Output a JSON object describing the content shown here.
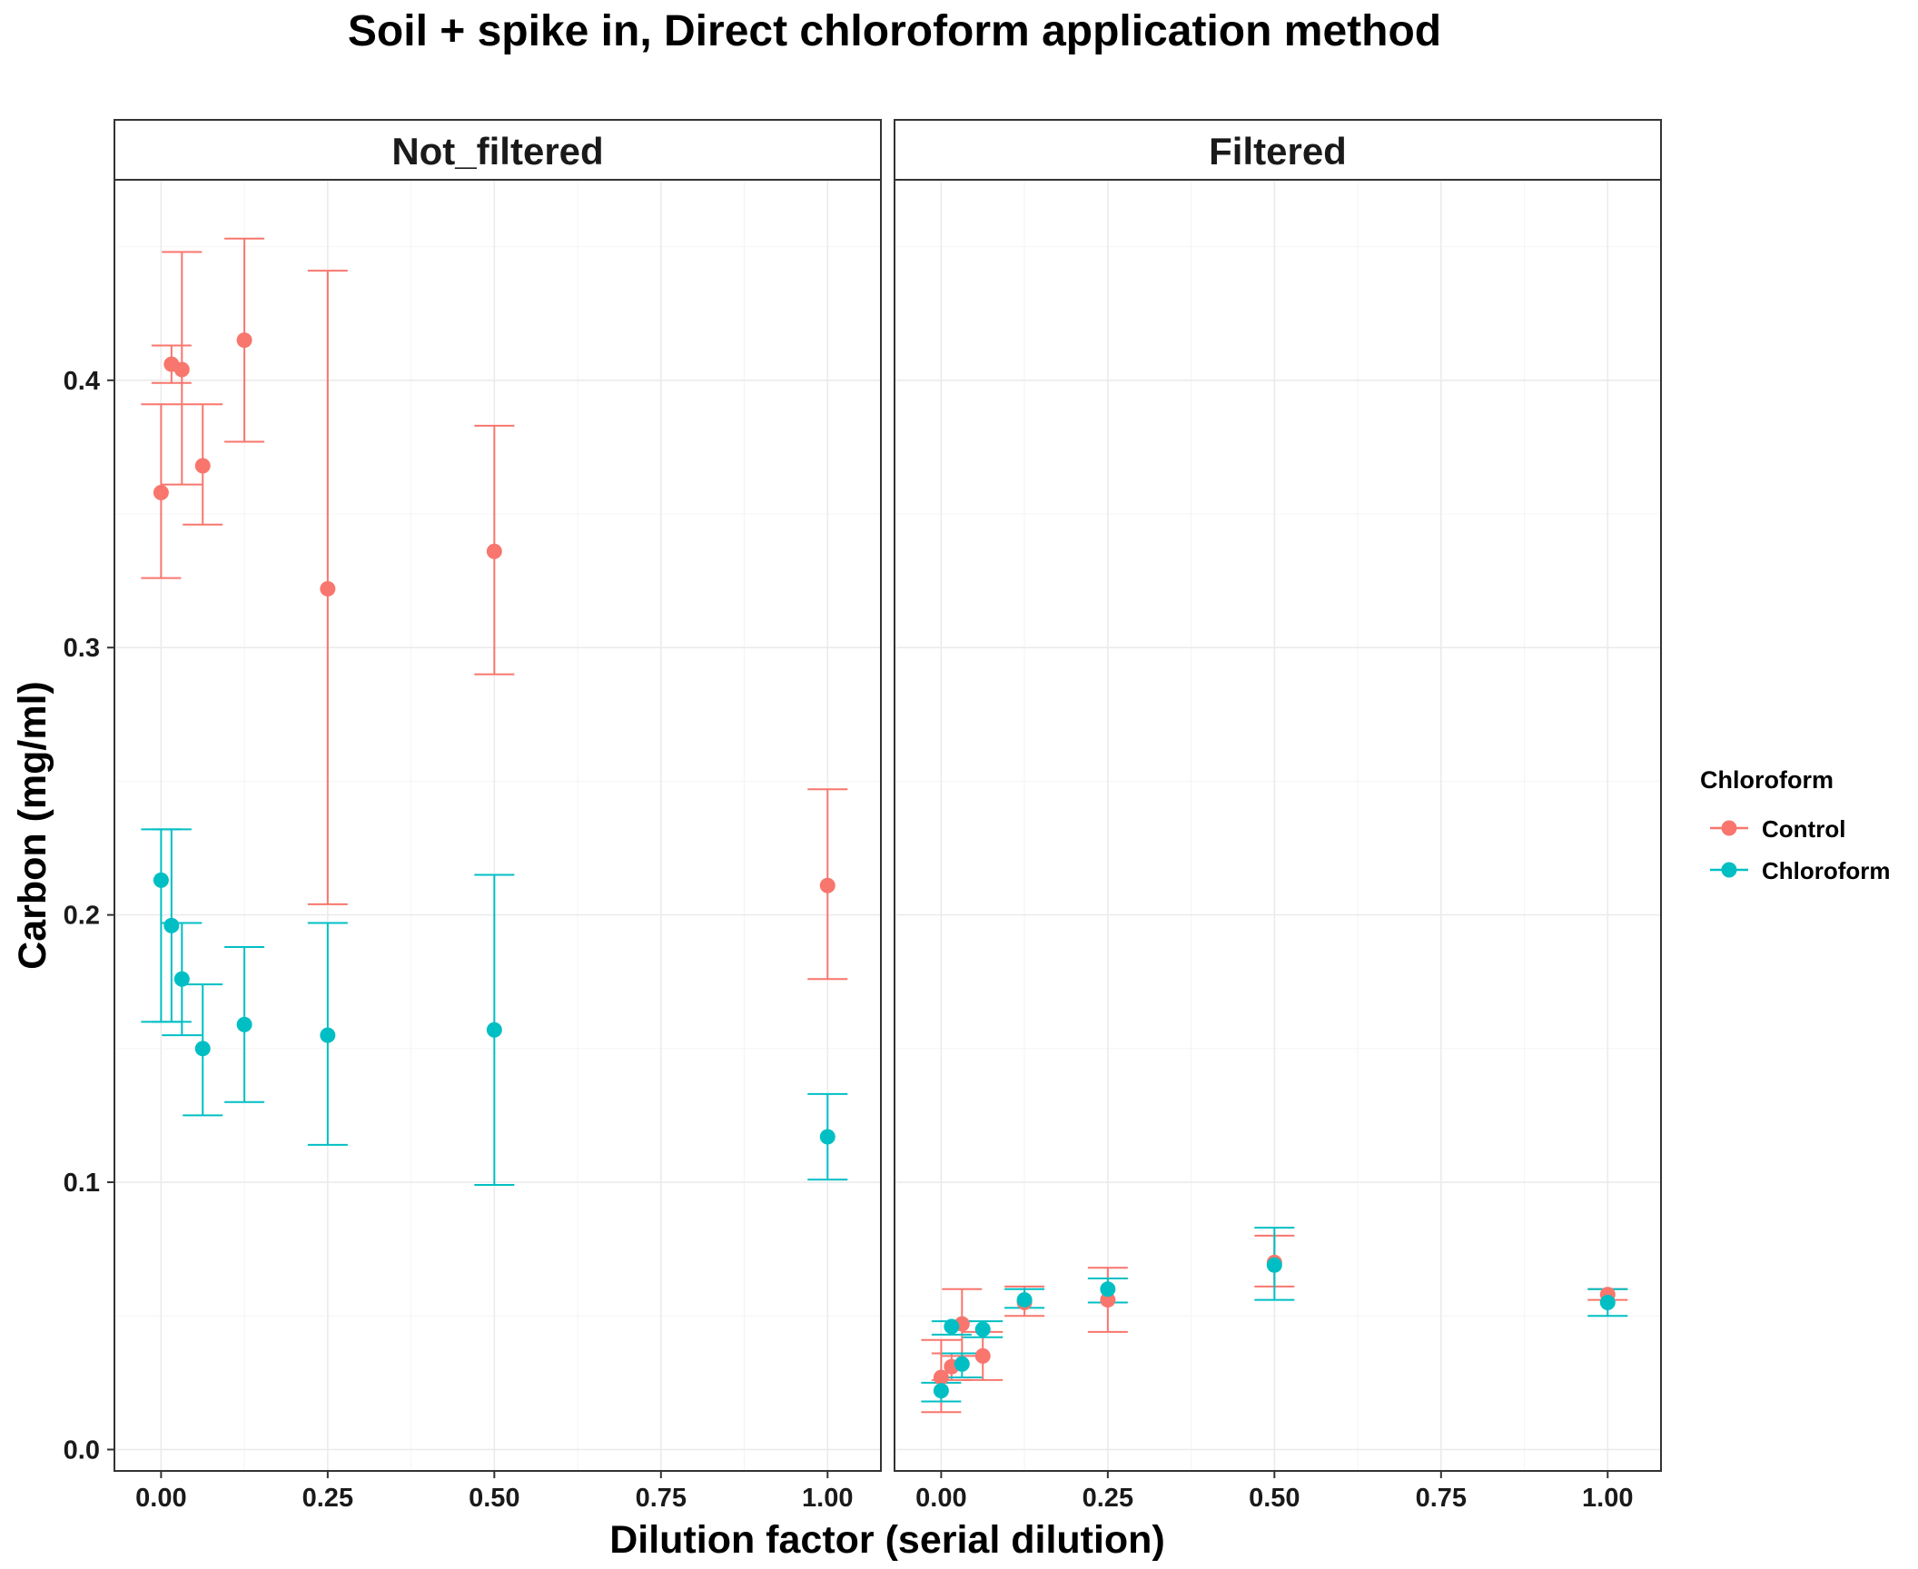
{
  "chart_data": {
    "type": "scatter",
    "title": "Soil + spike in, Direct chloroform application method",
    "xlabel": "Dilution factor (serial dilution)",
    "ylabel": "Carbon (mg/ml)",
    "xlim": [
      -0.07,
      1.08
    ],
    "ylim": [
      -0.008,
      0.475
    ],
    "x_ticks": [
      0,
      0.25,
      0.5,
      0.75,
      1.0
    ],
    "x_tick_labels": [
      "0.00",
      "0.25",
      "0.50",
      "0.75",
      "1.00"
    ],
    "y_ticks": [
      0,
      0.1,
      0.2,
      0.3,
      0.4
    ],
    "y_tick_labels": [
      "0.0",
      "0.1",
      "0.2",
      "0.3",
      "0.4"
    ],
    "grid": true,
    "legend": {
      "title": "Chloroform",
      "position": "right",
      "entries": [
        {
          "label": "Control",
          "color": "#F8766D"
        },
        {
          "label": "Chloroform",
          "color": "#00BFC4"
        }
      ]
    },
    "panels": [
      {
        "name": "Not_filtered",
        "series": [
          {
            "name": "Control",
            "color": "#F8766D",
            "points": [
              {
                "x": 0.0,
                "y": 0.358,
                "ymin": 0.326,
                "ymax": 0.391
              },
              {
                "x": 0.015625,
                "y": 0.406,
                "ymin": 0.399,
                "ymax": 0.413
              },
              {
                "x": 0.03125,
                "y": 0.404,
                "ymin": 0.361,
                "ymax": 0.448
              },
              {
                "x": 0.0625,
                "y": 0.368,
                "ymin": 0.346,
                "ymax": 0.391
              },
              {
                "x": 0.125,
                "y": 0.415,
                "ymin": 0.377,
                "ymax": 0.453
              },
              {
                "x": 0.25,
                "y": 0.322,
                "ymin": 0.204,
                "ymax": 0.441
              },
              {
                "x": 0.5,
                "y": 0.336,
                "ymin": 0.29,
                "ymax": 0.383
              },
              {
                "x": 1.0,
                "y": 0.211,
                "ymin": 0.176,
                "ymax": 0.247
              }
            ]
          },
          {
            "name": "Chloroform",
            "color": "#00BFC4",
            "points": [
              {
                "x": 0.0,
                "y": 0.213,
                "ymin": 0.16,
                "ymax": 0.232
              },
              {
                "x": 0.015625,
                "y": 0.196,
                "ymin": 0.16,
                "ymax": 0.232
              },
              {
                "x": 0.03125,
                "y": 0.176,
                "ymin": 0.155,
                "ymax": 0.197
              },
              {
                "x": 0.0625,
                "y": 0.15,
                "ymin": 0.125,
                "ymax": 0.174
              },
              {
                "x": 0.125,
                "y": 0.159,
                "ymin": 0.13,
                "ymax": 0.188
              },
              {
                "x": 0.25,
                "y": 0.155,
                "ymin": 0.114,
                "ymax": 0.197
              },
              {
                "x": 0.5,
                "y": 0.157,
                "ymin": 0.099,
                "ymax": 0.215
              },
              {
                "x": 1.0,
                "y": 0.117,
                "ymin": 0.101,
                "ymax": 0.133
              }
            ]
          }
        ]
      },
      {
        "name": "Filtered",
        "series": [
          {
            "name": "Control",
            "color": "#F8766D",
            "points": [
              {
                "x": 0.0,
                "y": 0.027,
                "ymin": 0.014,
                "ymax": 0.041
              },
              {
                "x": 0.015625,
                "y": 0.031,
                "ymin": 0.026,
                "ymax": 0.036
              },
              {
                "x": 0.03125,
                "y": 0.047,
                "ymin": 0.035,
                "ymax": 0.06
              },
              {
                "x": 0.0625,
                "y": 0.035,
                "ymin": 0.026,
                "ymax": 0.044
              },
              {
                "x": 0.125,
                "y": 0.055,
                "ymin": 0.05,
                "ymax": 0.061
              },
              {
                "x": 0.25,
                "y": 0.056,
                "ymin": 0.044,
                "ymax": 0.068
              },
              {
                "x": 0.5,
                "y": 0.07,
                "ymin": 0.061,
                "ymax": 0.08
              },
              {
                "x": 1.0,
                "y": 0.058,
                "ymin": 0.056,
                "ymax": 0.06
              }
            ]
          },
          {
            "name": "Chloroform",
            "color": "#00BFC4",
            "points": [
              {
                "x": 0.0,
                "y": 0.022,
                "ymin": 0.018,
                "ymax": 0.025
              },
              {
                "x": 0.015625,
                "y": 0.046,
                "ymin": 0.043,
                "ymax": 0.048
              },
              {
                "x": 0.03125,
                "y": 0.032,
                "ymin": 0.027,
                "ymax": 0.036
              },
              {
                "x": 0.0625,
                "y": 0.045,
                "ymin": 0.042,
                "ymax": 0.048
              },
              {
                "x": 0.125,
                "y": 0.056,
                "ymin": 0.053,
                "ymax": 0.06
              },
              {
                "x": 0.25,
                "y": 0.06,
                "ymin": 0.055,
                "ymax": 0.064
              },
              {
                "x": 0.5,
                "y": 0.069,
                "ymin": 0.056,
                "ymax": 0.083
              },
              {
                "x": 1.0,
                "y": 0.055,
                "ymin": 0.05,
                "ymax": 0.06
              }
            ]
          }
        ]
      }
    ]
  }
}
